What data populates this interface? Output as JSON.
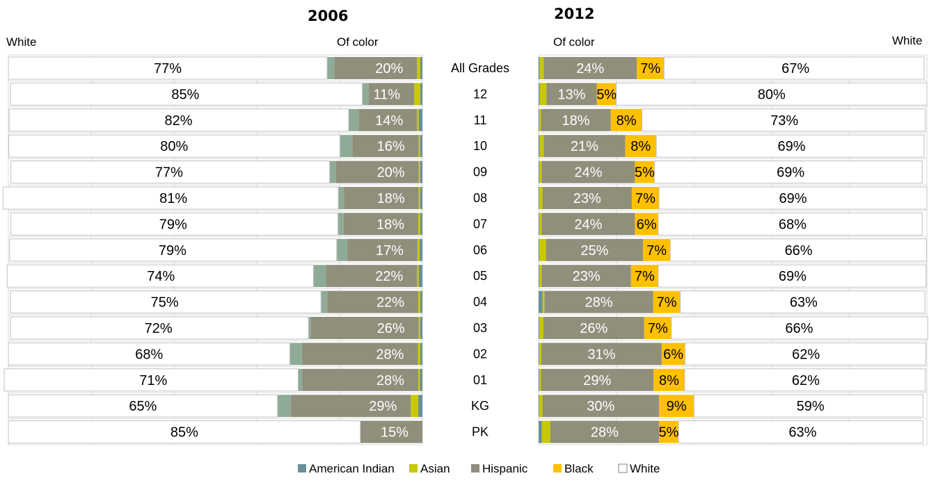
{
  "header": {
    "year_left": "2006",
    "year_right": "2012",
    "white_left": "White",
    "of_color_left": "Of color",
    "of_color_right": "Of color",
    "white_right": "White"
  },
  "colors": {
    "american_indian": "#6a8f98",
    "asian": "#c8c800",
    "hispanic": "#908f7c",
    "black": "#ffc000",
    "white": "#ffffff",
    "pacific": "#8fab98",
    "gridline": "#d9d9d9",
    "bar_border": "#bfbfbf"
  },
  "chart_data": {
    "type": "bar",
    "orientation": "horizontal",
    "stacked": true,
    "xlim": [
      0,
      100
    ],
    "categories": [
      "All Grades",
      "12",
      "11",
      "10",
      "09",
      "08",
      "07",
      "06",
      "05",
      "04",
      "03",
      "02",
      "01",
      "KG",
      "PK"
    ],
    "legend": {
      "position": "bottom",
      "entries": [
        "American Indian",
        "Asian",
        "Hispanic",
        "Black",
        "White"
      ]
    },
    "panels": [
      {
        "year": "2006",
        "direction": "right-to-left",
        "series": [
          {
            "name": "American Indian",
            "values": [
              0.5,
              0.5,
              0.9,
              0.5,
              0.5,
              0.5,
              0.5,
              0.7,
              0.9,
              0.5,
              0.5,
              0.5,
              0.6,
              1.0,
              0
            ]
          },
          {
            "name": "Asian",
            "values": [
              0.8,
              1.5,
              0.4,
              0.4,
              0.4,
              0.4,
              0.5,
              0.5,
              0.4,
              0.5,
              0.4,
              0.6,
              0.4,
              1.8,
              0
            ]
          },
          {
            "name": "Hispanic",
            "values": [
              20,
              11,
              14,
              16,
              20,
              18,
              18,
              17,
              22,
              22,
              26,
              28,
              28,
              29,
              15
            ]
          },
          {
            "name": "",
            "values": [
              1.7,
              1.5,
              2.5,
              3.0,
              1.5,
              1.4,
              1.4,
              2.5,
              3.0,
              1.5,
              0.6,
              2.9,
              1.0,
              3.2,
              0
            ]
          },
          {
            "name": "White",
            "values": [
              77,
              85,
              82,
              80,
              77,
              81,
              79,
              79,
              74,
              75,
              72,
              68,
              71,
              65,
              85
            ]
          }
        ],
        "labels": {
          "hispanic": [
            "20%",
            "11%",
            "14%",
            "16%",
            "20%",
            "18%",
            "18%",
            "17%",
            "22%",
            "22%",
            "26%",
            "28%",
            "28%",
            "29%",
            "15%"
          ],
          "white": [
            "77%",
            "85%",
            "82%",
            "80%",
            "77%",
            "81%",
            "79%",
            "79%",
            "74%",
            "75%",
            "72%",
            "68%",
            "71%",
            "65%",
            "85%"
          ]
        }
      },
      {
        "year": "2012",
        "direction": "left-to-right",
        "series": [
          {
            "name": "American Indian",
            "values": [
              0.3,
              0.3,
              0.2,
              0.3,
              0.2,
              0.2,
              0.2,
              0.2,
              0.2,
              1.0,
              0.2,
              0.2,
              0.2,
              0.2,
              0.8
            ]
          },
          {
            "name": "Asian",
            "values": [
              1.0,
              1.7,
              0.4,
              1.0,
              0.6,
              0.8,
              0.6,
              1.7,
              0.6,
              0.5,
              1.0,
              0.5,
              0.4,
              0.8,
              2.2
            ]
          },
          {
            "name": "Hispanic",
            "values": [
              24,
              13,
              18,
              21,
              24,
              23,
              24,
              25,
              23,
              28,
              26,
              31,
              29,
              30,
              28
            ]
          },
          {
            "name": "Black",
            "values": [
              7,
              5,
              8,
              8,
              5,
              7,
              6,
              7,
              7,
              7,
              7,
              6,
              8,
              9,
              5
            ]
          },
          {
            "name": "White",
            "values": [
              67,
              80,
              73,
              69,
              69,
              69,
              68,
              66,
              69,
              63,
              66,
              62,
              62,
              59,
              63
            ]
          }
        ],
        "labels": {
          "hispanic": [
            "24%",
            "13%",
            "18%",
            "21%",
            "24%",
            "23%",
            "24%",
            "25%",
            "23%",
            "28%",
            "26%",
            "31%",
            "29%",
            "30%",
            "28%"
          ],
          "black": [
            "7%",
            "5%",
            "8%",
            "8%",
            "5%",
            "7%",
            "6%",
            "7%",
            "7%",
            "7%",
            "7%",
            "6%",
            "8%",
            "9%",
            "5%"
          ],
          "white": [
            "67%",
            "80%",
            "73%",
            "69%",
            "69%",
            "69%",
            "68%",
            "66%",
            "69%",
            "63%",
            "66%",
            "62%",
            "62%",
            "59%",
            "63%"
          ]
        }
      }
    ]
  }
}
